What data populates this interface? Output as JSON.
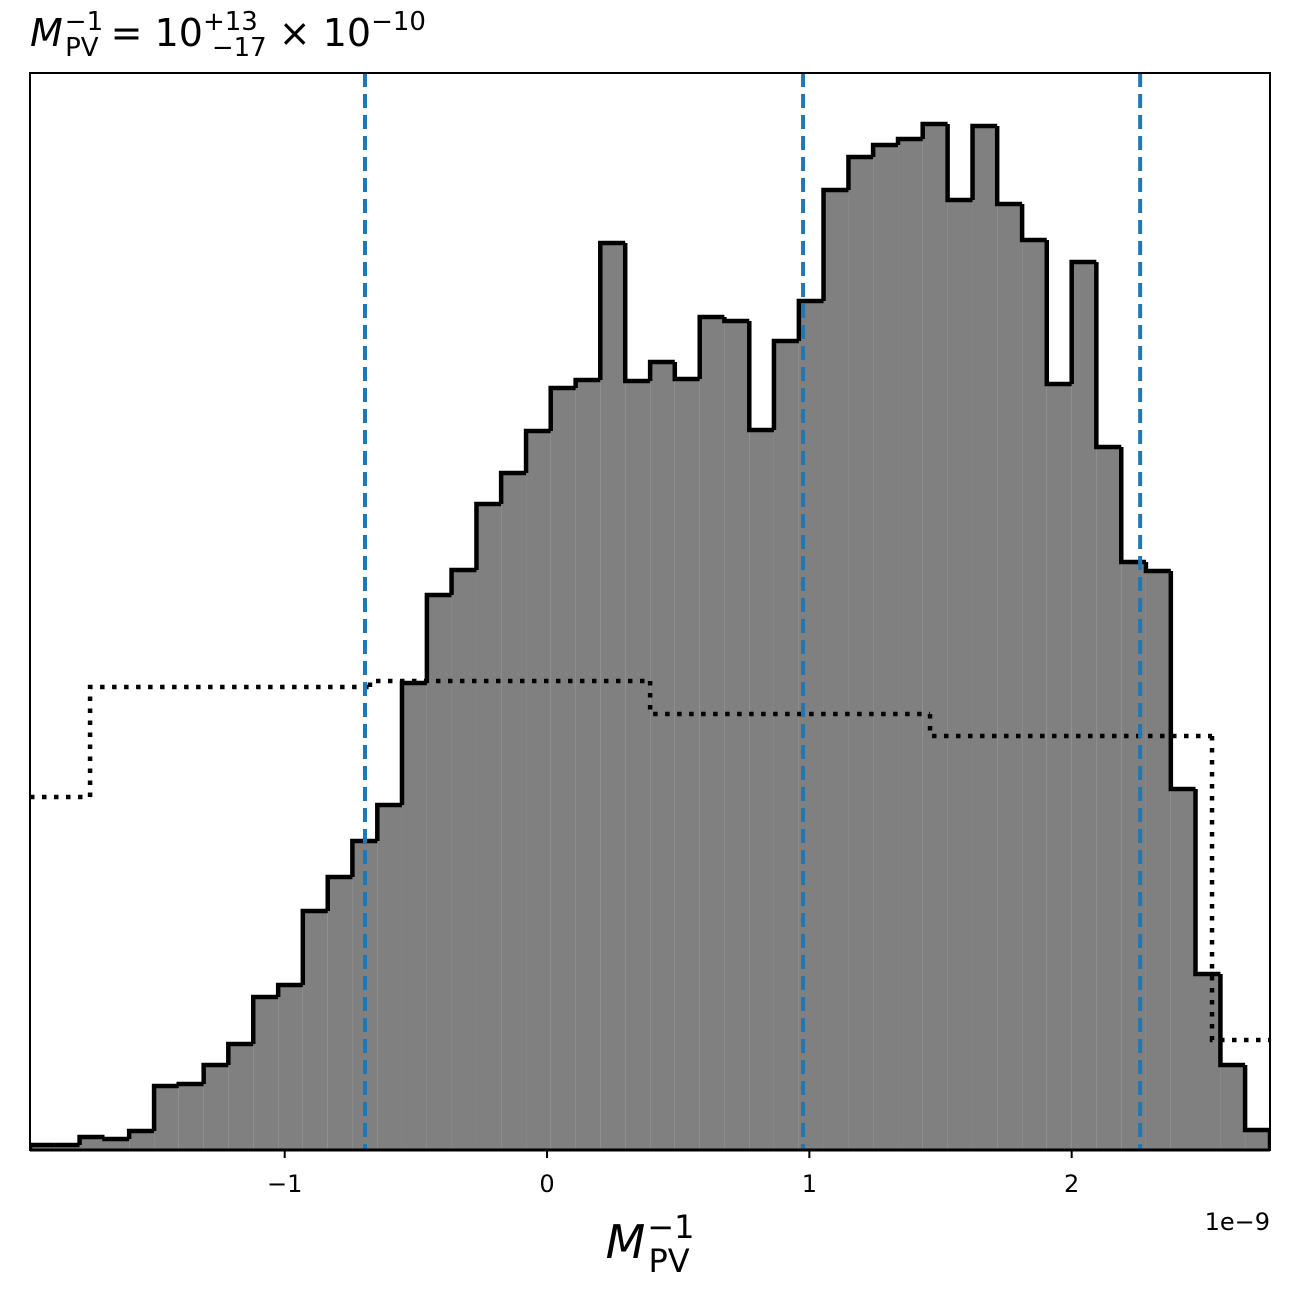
{
  "chart_data": {
    "type": "histogram",
    "title": {
      "symbol": "M",
      "sub": "PV",
      "sup": "−1",
      "eq": " = 10",
      "upper": "+13",
      "lower": "−17",
      "times": " × 10",
      "exp": "−10"
    },
    "xlabel": {
      "symbol": "M",
      "sub": "PV",
      "sup": "−1"
    },
    "x_offset_label": "1e−9",
    "xlim": [
      -1.971,
      2.756
    ],
    "ylim": [
      0,
      1077
    ],
    "xticks": [
      {
        "value": -1,
        "label": "−1"
      },
      0,
      1,
      2
    ],
    "color": "#808080",
    "edgecolor": "#000000",
    "bins": [
      -1.971,
      -1.876,
      -1.782,
      -1.687,
      -1.593,
      -1.498,
      -1.404,
      -1.309,
      -1.215,
      -1.12,
      -1.025,
      -0.931,
      -0.836,
      -0.742,
      -0.647,
      -0.553,
      -0.458,
      -0.364,
      -0.269,
      -0.175,
      -0.08,
      0.014,
      0.109,
      0.203,
      0.298,
      0.393,
      0.487,
      0.582,
      0.676,
      0.771,
      0.865,
      0.96,
      1.054,
      1.149,
      1.243,
      1.338,
      1.432,
      1.527,
      1.622,
      1.716,
      1.811,
      1.905,
      2.0,
      2.094,
      2.189,
      2.283,
      2.378,
      2.472,
      2.567,
      2.661,
      2.756
    ],
    "values": [
      5,
      5,
      13,
      11,
      19,
      64,
      66,
      85,
      106,
      153,
      165,
      239,
      273,
      309,
      345,
      467,
      555,
      580,
      646,
      677,
      719,
      762,
      770,
      907,
      769,
      788,
      771,
      833,
      829,
      720,
      809,
      849,
      960,
      993,
      1005,
      1011,
      1026,
      950,
      1024,
      946,
      910,
      766,
      888,
      703,
      588,
      579,
      361,
      176,
      85,
      20
    ],
    "prior": {
      "color": "#000000",
      "bins": [
        -1.971,
        -1.742,
        -0.675,
        0.393,
        1.46,
        2.535,
        2.756
      ],
      "values": [
        353,
        463,
        469,
        436,
        414,
        110
      ]
    },
    "vlines": {
      "color": "#1f77b4",
      "values": [
        -0.694,
        0.976,
        2.261
      ]
    }
  }
}
